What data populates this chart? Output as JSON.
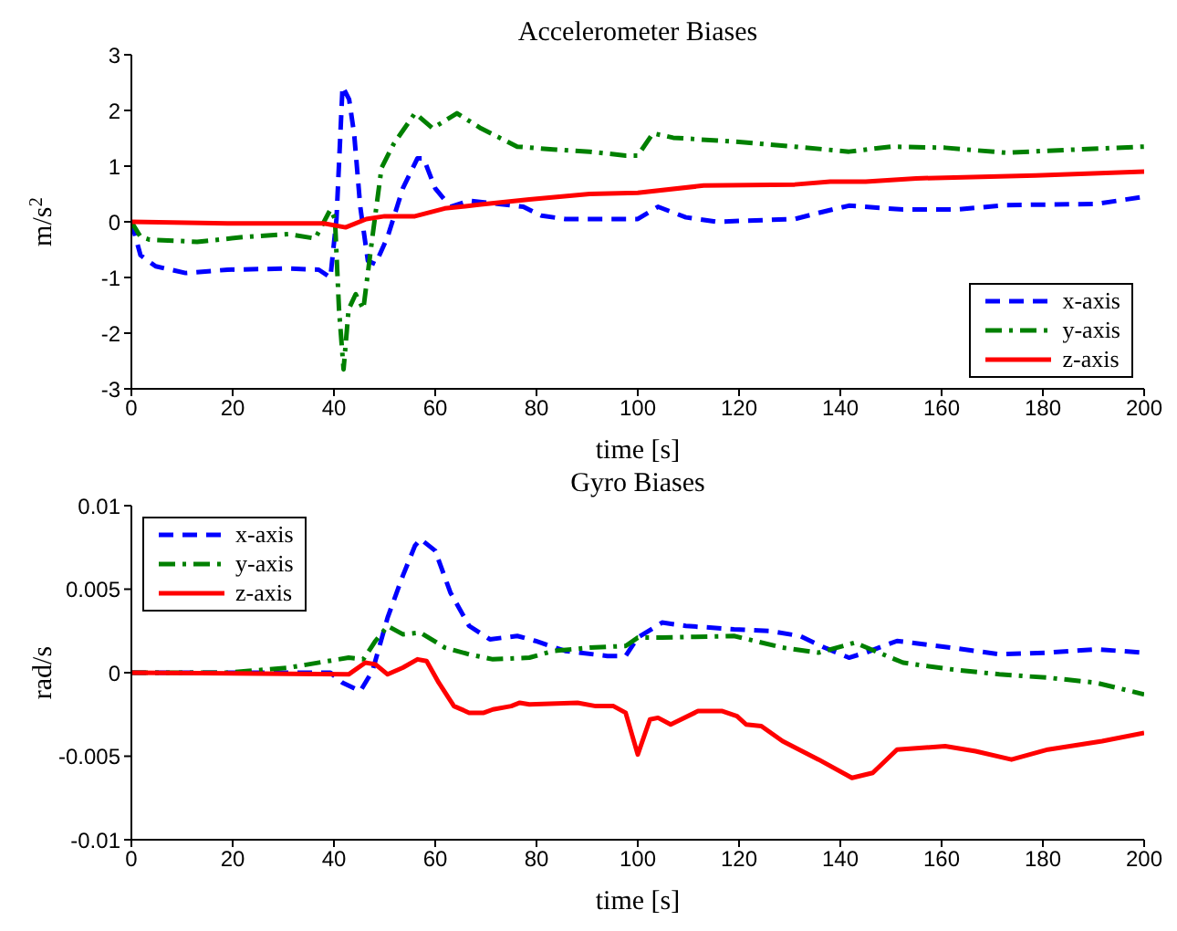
{
  "chart_data": [
    {
      "type": "line",
      "title": "Accelerometer Biases",
      "xlabel": "time [s]",
      "ylabel": "m/s$^{2}$",
      "xlim": [
        0,
        200
      ],
      "xticks": [
        0,
        20,
        40,
        60,
        80,
        100,
        120,
        140,
        160,
        180,
        200
      ],
      "ylim": [
        -3,
        3
      ],
      "yticks": [
        -3,
        -2,
        -1,
        0,
        1,
        2,
        3
      ],
      "legend": "bottom right",
      "series": [
        {
          "name": "x-axis",
          "color": "#0000ff",
          "line_style": "dashed",
          "x": [
            0,
            1.8,
            4.8,
            10.7,
            19,
            31,
            37,
            39.3,
            40.5,
            41.7,
            43,
            44,
            45.2,
            46.7,
            48.2,
            50.6,
            53.6,
            56.5,
            57.7,
            60,
            63,
            66.7,
            72.6,
            77.4,
            81,
            85.7,
            97.6,
            100,
            104,
            109.5,
            115.5,
            131,
            135.7,
            141.7,
            152.4,
            163,
            172.6,
            190.5,
            200
          ],
          "values": [
            0,
            -0.6,
            -0.8,
            -0.92,
            -0.86,
            -0.84,
            -0.86,
            -1.0,
            0.05,
            2.43,
            2.2,
            1.57,
            0.27,
            -0.7,
            -0.76,
            -0.27,
            0.6,
            1.14,
            1.14,
            0.6,
            0.27,
            0.38,
            0.32,
            0.27,
            0.11,
            0.05,
            0.05,
            0.05,
            0.27,
            0.08,
            0,
            0.05,
            0.16,
            0.29,
            0.22,
            0.22,
            0.3,
            0.32,
            0.45
          ]
        },
        {
          "name": "y-axis",
          "color": "#008000",
          "line_style": "dotted",
          "x": [
            0,
            1.8,
            3.6,
            13,
            22.6,
            31,
            36.3,
            39.3,
            40.2,
            41,
            41.9,
            42.9,
            44.3,
            45.8,
            47.6,
            49.4,
            51.8,
            56,
            59.5,
            64.3,
            69,
            76.2,
            83.3,
            90.5,
            97.6,
            100,
            103,
            107,
            119,
            131,
            141.7,
            150,
            160.7,
            172.6,
            184.5,
            200
          ],
          "values": [
            0,
            -0.27,
            -0.32,
            -0.36,
            -0.27,
            -0.22,
            -0.3,
            0.22,
            0.05,
            -1.57,
            -2.65,
            -1.57,
            -1.3,
            -1.57,
            -0.27,
            0.97,
            1.4,
            1.95,
            1.68,
            1.95,
            1.68,
            1.35,
            1.3,
            1.26,
            1.19,
            1.19,
            1.59,
            1.51,
            1.44,
            1.35,
            1.26,
            1.35,
            1.33,
            1.24,
            1.29,
            1.35
          ]
        },
        {
          "name": "z-axis",
          "color": "#ff0000",
          "line_style": "solid",
          "x": [
            0,
            19,
            38,
            42.3,
            46.4,
            50,
            56,
            61.9,
            69,
            78.6,
            90.5,
            100,
            113,
            131,
            138,
            145,
            155,
            178.6,
            200
          ],
          "values": [
            0,
            -0.03,
            -0.03,
            -0.1,
            0.05,
            0.1,
            0.1,
            0.24,
            0.31,
            0.4,
            0.5,
            0.52,
            0.65,
            0.67,
            0.72,
            0.72,
            0.78,
            0.83,
            0.9
          ]
        }
      ]
    },
    {
      "type": "line",
      "title": "Gyro Biases",
      "xlabel": "time [s]",
      "ylabel": "rad/s",
      "xlim": [
        0,
        200
      ],
      "xticks": [
        0,
        20,
        40,
        60,
        80,
        100,
        120,
        140,
        160,
        180,
        200
      ],
      "ylim": [
        -0.01,
        0.01
      ],
      "yticks": [
        -0.01,
        -0.005,
        0,
        0.005,
        0.01
      ],
      "legend": "top left",
      "series": [
        {
          "name": "x-axis",
          "color": "#0000ff",
          "line_style": "dashed",
          "x": [
            0,
            39.3,
            41.7,
            45.2,
            47.6,
            50.6,
            53.6,
            56,
            57.1,
            60,
            63,
            66.7,
            70.8,
            76.2,
            79.8,
            85.7,
            94,
            97.6,
            100,
            104.8,
            109.5,
            119,
            126,
            132,
            136.9,
            141.7,
            145,
            151.2,
            161.9,
            171.4,
            181,
            190.5,
            200
          ],
          "values": [
            0,
            0,
            -0.0006,
            -0.0011,
            0.0001,
            0.0033,
            0.0058,
            0.0076,
            0.008,
            0.0073,
            0.0048,
            0.0028,
            0.002,
            0.0022,
            0.0019,
            0.0013,
            0.001,
            0.001,
            0.0021,
            0.003,
            0.0028,
            0.0026,
            0.0025,
            0.0022,
            0.0015,
            0.0009,
            0.0012,
            0.0019,
            0.0015,
            0.0011,
            0.0012,
            0.0014,
            0.0012
          ]
        },
        {
          "name": "y-axis",
          "color": "#008000",
          "line_style": "dotted",
          "x": [
            0,
            19,
            31,
            42.9,
            45.8,
            48.2,
            50.6,
            53.6,
            57.1,
            61.9,
            66.7,
            71.4,
            78.6,
            83.3,
            90.5,
            97.6,
            100,
            104.8,
            119,
            128.6,
            135.7,
            142.9,
            147.6,
            152.4,
            161.9,
            171.4,
            181,
            190.5,
            200
          ],
          "values": [
            0,
            0,
            0.0003,
            0.0009,
            0.0008,
            0.0019,
            0.0028,
            0.0023,
            0.0024,
            0.0015,
            0.0011,
            0.0008,
            0.0009,
            0.0013,
            0.0015,
            0.0016,
            0.0021,
            0.0021,
            0.0022,
            0.0015,
            0.0012,
            0.0018,
            0.0012,
            0.0006,
            0.0002,
            -0.0001,
            -0.0003,
            -0.0006,
            -0.0013
          ]
        },
        {
          "name": "z-axis",
          "color": "#ff0000",
          "line_style": "solid",
          "x": [
            0,
            42.9,
            46.2,
            48.2,
            50.6,
            53.6,
            56.5,
            58.3,
            60.7,
            63.7,
            66.7,
            69.6,
            71.4,
            75,
            76.7,
            78.6,
            88.1,
            91.7,
            95.2,
            97.6,
            100,
            102.4,
            104,
            106.5,
            111.9,
            116.7,
            119.6,
            121.4,
            124.4,
            128.6,
            135.7,
            142.3,
            146.4,
            151.2,
            160.7,
            166.7,
            173.8,
            181,
            191.7,
            200
          ],
          "values": [
            0,
            -0.0001,
            0.0006,
            0.0005,
            -0.0001,
            0.0003,
            0.0008,
            0.0007,
            -0.0006,
            -0.002,
            -0.0024,
            -0.0024,
            -0.0022,
            -0.002,
            -0.0018,
            -0.0019,
            -0.0018,
            -0.002,
            -0.002,
            -0.0024,
            -0.0049,
            -0.0028,
            -0.0027,
            -0.0031,
            -0.0023,
            -0.0023,
            -0.0026,
            -0.0031,
            -0.0032,
            -0.0041,
            -0.0052,
            -0.0063,
            -0.006,
            -0.0046,
            -0.0044,
            -0.0047,
            -0.0052,
            -0.0046,
            -0.0041,
            -0.0036
          ]
        }
      ]
    }
  ]
}
